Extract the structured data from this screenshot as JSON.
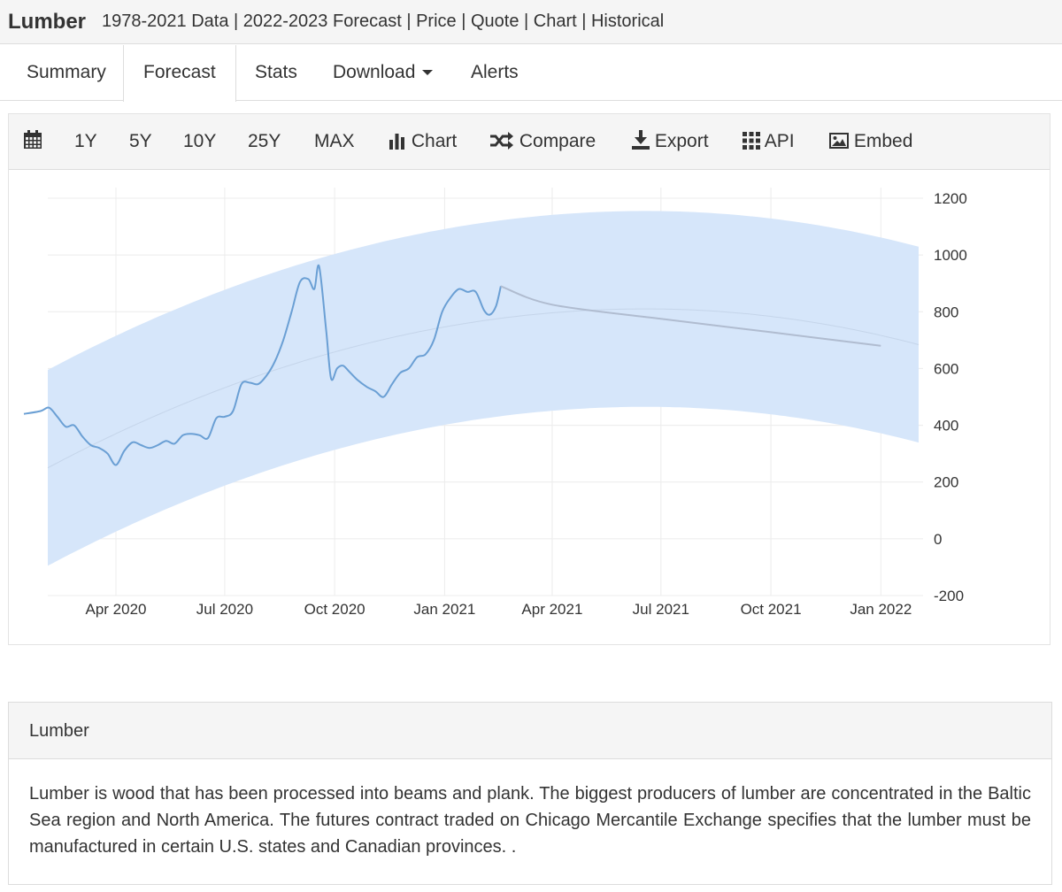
{
  "header": {
    "title": "Lumber",
    "subtitle": "1978-2021 Data | 2022-2023 Forecast | Price | Quote | Chart | Historical"
  },
  "nav": {
    "tabs": [
      {
        "label": "Summary"
      },
      {
        "label": "Forecast",
        "active": true
      },
      {
        "label": "Stats"
      },
      {
        "label": "Download",
        "dropdown": true
      },
      {
        "label": "Alerts"
      }
    ]
  },
  "toolbar": {
    "calendar_icon": "calendar-icon",
    "ranges": [
      "1Y",
      "5Y",
      "10Y",
      "25Y",
      "MAX"
    ],
    "chart_label": "Chart",
    "compare_label": "Compare",
    "export_label": "Export",
    "api_label": "API",
    "embed_label": "Embed"
  },
  "chart_data": {
    "type": "line",
    "title": "",
    "xlabel": "",
    "ylabel": "",
    "x_ticks": [
      "Apr 2020",
      "Jul 2020",
      "Oct 2020",
      "Jan 2021",
      "Apr 2021",
      "Jul 2021",
      "Oct 2021",
      "Jan 2022"
    ],
    "y_ticks": [
      1200,
      1000,
      800,
      600,
      400,
      200,
      0,
      -200
    ],
    "ylim": [
      -200,
      1200
    ],
    "y_axis_side": "right",
    "grid": true,
    "legend": false,
    "colors": {
      "actual": "#6a9fd4",
      "forecast": "#b0bcd0",
      "band": "#d6e6fa",
      "trend": "#c5d5ea"
    },
    "series": [
      {
        "role": "actual",
        "points": [
          [
            "2020-01-15",
            440
          ],
          [
            "2020-01-29",
            450
          ],
          [
            "2020-02-05",
            462
          ],
          [
            "2020-02-12",
            430
          ],
          [
            "2020-02-19",
            395
          ],
          [
            "2020-02-26",
            400
          ],
          [
            "2020-03-04",
            360
          ],
          [
            "2020-03-11",
            330
          ],
          [
            "2020-03-18",
            320
          ],
          [
            "2020-03-25",
            300
          ],
          [
            "2020-04-01",
            260
          ],
          [
            "2020-04-08",
            310
          ],
          [
            "2020-04-15",
            340
          ],
          [
            "2020-04-22",
            330
          ],
          [
            "2020-04-29",
            320
          ],
          [
            "2020-05-06",
            330
          ],
          [
            "2020-05-13",
            345
          ],
          [
            "2020-05-20",
            335
          ],
          [
            "2020-05-27",
            365
          ],
          [
            "2020-06-03",
            370
          ],
          [
            "2020-06-10",
            365
          ],
          [
            "2020-06-17",
            355
          ],
          [
            "2020-06-24",
            425
          ],
          [
            "2020-07-01",
            430
          ],
          [
            "2020-07-08",
            450
          ],
          [
            "2020-07-15",
            545
          ],
          [
            "2020-07-22",
            550
          ],
          [
            "2020-07-29",
            545
          ],
          [
            "2020-08-05",
            575
          ],
          [
            "2020-08-12",
            625
          ],
          [
            "2020-08-19",
            700
          ],
          [
            "2020-08-26",
            800
          ],
          [
            "2020-09-02",
            905
          ],
          [
            "2020-09-09",
            915
          ],
          [
            "2020-09-14",
            880
          ],
          [
            "2020-09-18",
            960
          ],
          [
            "2020-09-24",
            730
          ],
          [
            "2020-09-28",
            565
          ],
          [
            "2020-10-03",
            600
          ],
          [
            "2020-10-08",
            610
          ],
          [
            "2020-10-13",
            590
          ],
          [
            "2020-10-20",
            560
          ],
          [
            "2020-10-28",
            535
          ],
          [
            "2020-11-04",
            520
          ],
          [
            "2020-11-11",
            500
          ],
          [
            "2020-11-18",
            545
          ],
          [
            "2020-11-25",
            585
          ],
          [
            "2020-12-02",
            600
          ],
          [
            "2020-12-09",
            640
          ],
          [
            "2020-12-16",
            650
          ],
          [
            "2020-12-23",
            700
          ],
          [
            "2020-12-30",
            800
          ],
          [
            "2021-01-06",
            850
          ],
          [
            "2021-01-13",
            880
          ],
          [
            "2021-01-20",
            870
          ],
          [
            "2021-01-27",
            870
          ],
          [
            "2021-02-03",
            805
          ],
          [
            "2021-02-08",
            790
          ],
          [
            "2021-02-13",
            820
          ],
          [
            "2021-02-17",
            890
          ]
        ]
      },
      {
        "role": "forecast",
        "points": [
          [
            "2021-02-17",
            890
          ],
          [
            "2021-04-01",
            825
          ],
          [
            "2021-07-01",
            775
          ],
          [
            "2021-10-01",
            728
          ],
          [
            "2022-01-01",
            680
          ]
        ]
      }
    ]
  },
  "panel": {
    "heading": "Lumber",
    "body": "Lumber is wood that has been processed into beams and plank. The biggest producers of lumber are concentrated in the Baltic Sea region and North America. The futures contract traded on Chicago Mercantile Exchange specifies that the lumber must be manufactured in certain U.S. states and Canadian provinces. ."
  }
}
